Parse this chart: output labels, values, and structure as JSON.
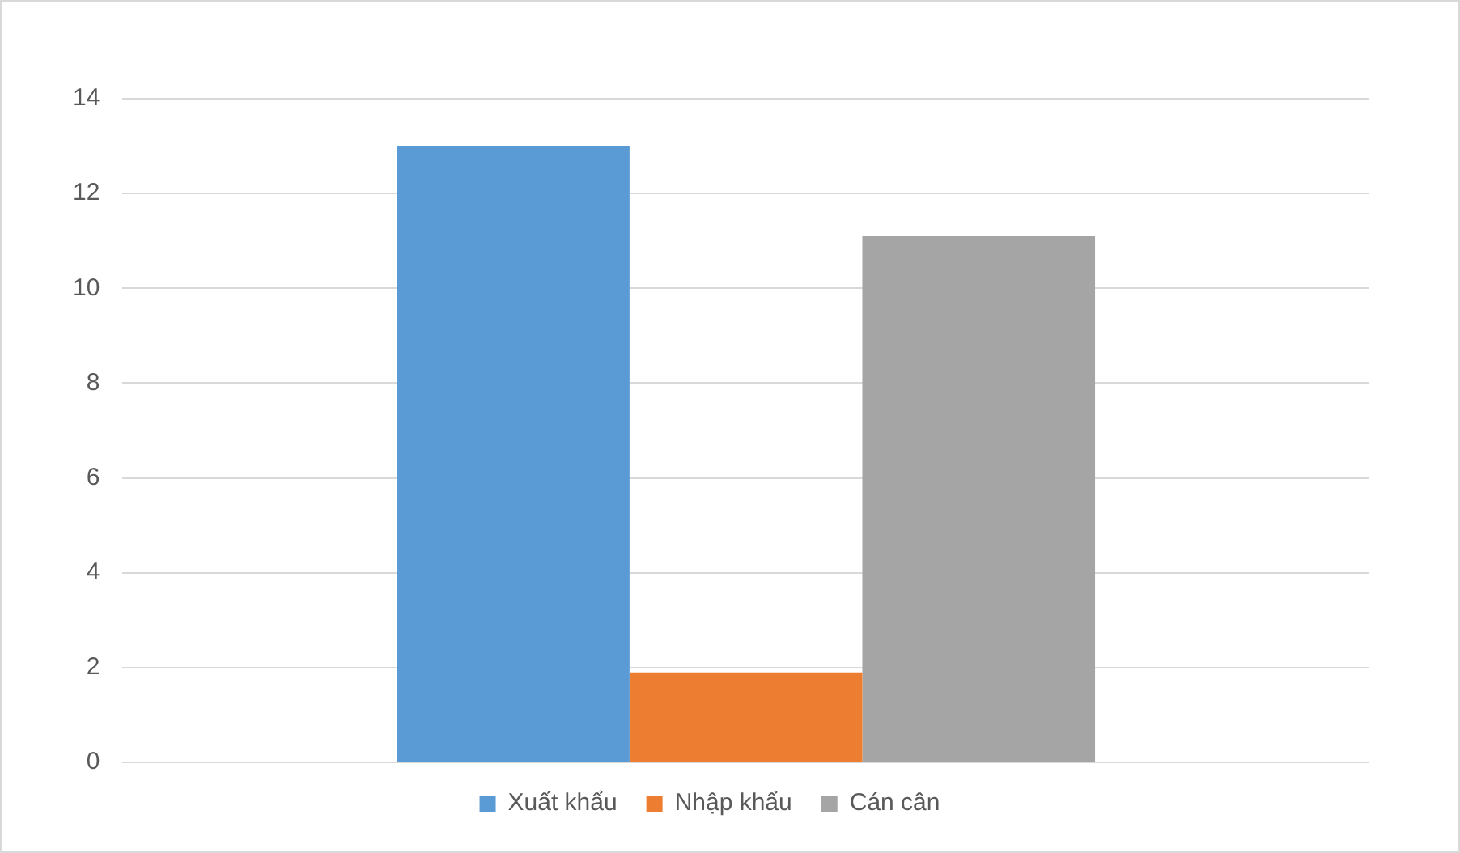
{
  "chart_data": {
    "type": "bar",
    "categories": [
      null
    ],
    "series": [
      {
        "name": "Xuất khẩu",
        "color": "#5b9bd5",
        "values": [
          13.0
        ]
      },
      {
        "name": "Nhập khẩu",
        "color": "#ed7d31",
        "values": [
          1.9
        ]
      },
      {
        "name": "Cán cân",
        "color": "#a5a5a5",
        "values": [
          11.1
        ]
      }
    ],
    "ylim": [
      0,
      14
    ],
    "yticks": [
      0,
      2,
      4,
      6,
      8,
      10,
      12,
      14
    ],
    "grid": "y",
    "legend": "bottom",
    "tick_labels": "y"
  }
}
